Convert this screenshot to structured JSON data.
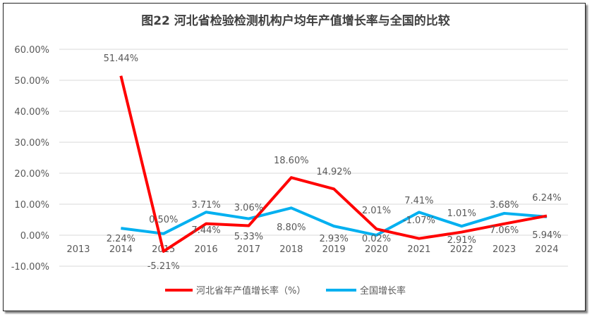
{
  "chart_data": {
    "type": "line",
    "title": "图22  河北省检验检测机构户均年产值增长率与全国的比较",
    "categories": [
      "2013",
      "2014",
      "2015",
      "2016",
      "2017",
      "2018",
      "2019",
      "2020",
      "2021",
      "2022",
      "2023",
      "2024"
    ],
    "ylim": [
      -10,
      60
    ],
    "yticks": [
      "-10.00%",
      "0.00%",
      "10.00%",
      "20.00%",
      "30.00%",
      "40.00%",
      "50.00%",
      "60.00%"
    ],
    "grid": true,
    "legend_position": "bottom",
    "series": [
      {
        "name": "河北省年产值增长率（%）",
        "color": "#ff0000",
        "values": [
          null,
          51.44,
          -5.21,
          3.71,
          3.06,
          18.6,
          14.92,
          2.01,
          -1.07,
          1.01,
          3.68,
          6.24
        ],
        "labels": [
          "",
          "51.44%",
          "-5.21%",
          "3.71%",
          "3.06%",
          "18.60%",
          "14.92%",
          "2.01%",
          "-1.07%",
          "1.01%",
          "3.68%",
          "6.24%"
        ]
      },
      {
        "name": "全国增长率",
        "color": "#00b0f0",
        "values": [
          null,
          2.24,
          0.5,
          7.44,
          5.33,
          8.8,
          2.93,
          0.02,
          7.41,
          2.91,
          7.06,
          5.94
        ],
        "labels": [
          "",
          "2.24%",
          "0.50%",
          "7.44%",
          "5.33%",
          "8.80%",
          "2.93%",
          "0.02%",
          "7.41%",
          "2.91%",
          "7.06%",
          "5.94%"
        ]
      }
    ]
  }
}
